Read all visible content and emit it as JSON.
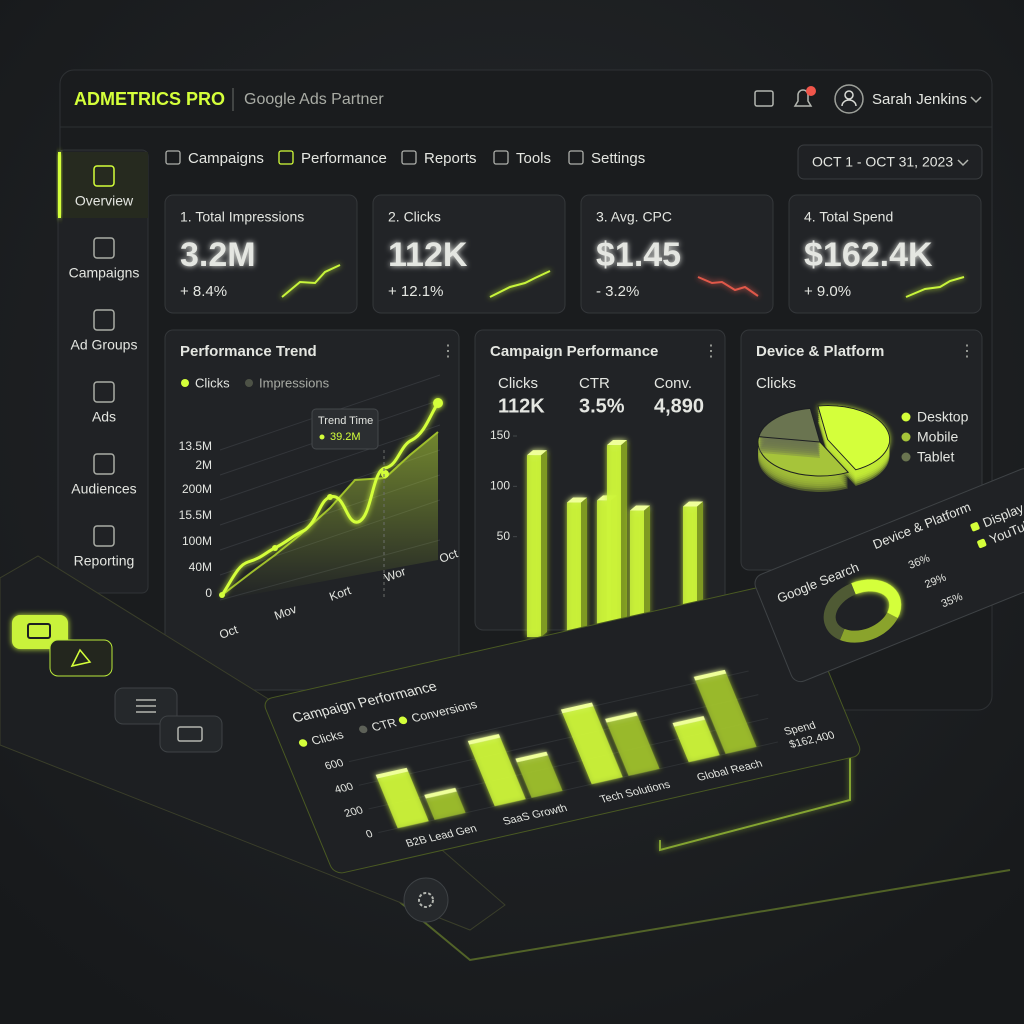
{
  "header": {
    "brand": "ADMETRICS PRO",
    "subtitle": "Google Ads Partner",
    "user": "Sarah Jenkins"
  },
  "sidebar": [
    "Overview",
    "Campaigns",
    "Ad Groups",
    "Ads",
    "Audiences",
    "Reporting"
  ],
  "tabs": [
    "Campaigns",
    "Performance",
    "Reports",
    "Tools",
    "Settings"
  ],
  "date_range": "OCT 1 - OCT 31, 2023",
  "kpis": [
    {
      "label": "1. Total Impressions",
      "value": "3.2M",
      "change": "+ 8.4%",
      "color": "#b9e83a"
    },
    {
      "label": "2. Clicks",
      "value": "112K",
      "change": "+ 12.1%",
      "color": "#b9e83a"
    },
    {
      "label": "3. Avg. CPC",
      "value": "$1.45",
      "change": "- 3.2%",
      "color": "#e0584a"
    },
    {
      "label": "4. Total Spend",
      "value": "$162.4K",
      "change": "+ 9.0%",
      "color": "#b9e83a"
    }
  ],
  "trend": {
    "title": "Performance Trend",
    "legend": [
      "Clicks",
      "Impressions"
    ],
    "tooltip": {
      "title": "Trend Time",
      "value": "39.2M"
    },
    "y_labels": [
      "13.5M",
      "2M",
      "200M",
      "15.5M",
      "100M",
      "40M",
      "0"
    ],
    "x_labels": [
      "Oct",
      "Mov",
      "Kort",
      "Wor",
      "Oct"
    ],
    "origin_label": "0"
  },
  "campaign": {
    "type": "bar",
    "title": "Campaign Performance",
    "metrics": [
      {
        "label": "Clicks",
        "value": "112K"
      },
      {
        "label": "CTR",
        "value": "3.5%"
      },
      {
        "label": "Conv.",
        "value": "4,890"
      }
    ],
    "values": [
      131,
      84,
      86,
      141,
      76,
      80
    ],
    "color": "#cdf53a",
    "ylim": [
      0,
      150
    ],
    "yticks": [
      50,
      100,
      150
    ]
  },
  "device": {
    "type": "pie",
    "title": "Device & Platform",
    "subtitle": "Clicks",
    "categories": [
      "Desktop",
      "Mobile",
      "Tablet"
    ],
    "values": [
      45,
      35,
      20
    ],
    "colors": [
      "#d4ff3a",
      "#a6c43a",
      "#6a7450"
    ]
  },
  "breakdown": {
    "type": "bar",
    "title": "Campaign Performance",
    "legend": [
      {
        "name": "Clicks",
        "color": "#d4ff3a"
      },
      {
        "name": "CTR",
        "color": "#5d6158"
      },
      {
        "name": "Conversions",
        "color": "#d4ff3a"
      }
    ],
    "categories": [
      "B2B Lead Gen",
      "SaaS Growth",
      "Tech Solutions",
      "Global Reach"
    ],
    "series": [
      {
        "name": "Clicks",
        "color": "#cdf53a",
        "values": [
          420,
          520,
          600,
          300
        ]
      },
      {
        "name": "Conversions",
        "color": "#9fbf2c",
        "values": [
          180,
          300,
          450,
          620
        ]
      }
    ],
    "ylim": [
      0,
      700
    ],
    "yticks": [
      0,
      200,
      400,
      600
    ],
    "annotation": [
      "Spend",
      "$162,400"
    ]
  },
  "platform": {
    "type": "donut",
    "title": "Device & Platform",
    "subtitle": "Google Search",
    "legend": [
      "Display",
      "YouTube"
    ],
    "values": [
      36,
      29,
      35
    ],
    "value_labels": [
      "36%",
      "29%",
      "35%"
    ],
    "colors": [
      "#d4ff3a",
      "#8aa32c",
      "#4f5a34"
    ]
  }
}
